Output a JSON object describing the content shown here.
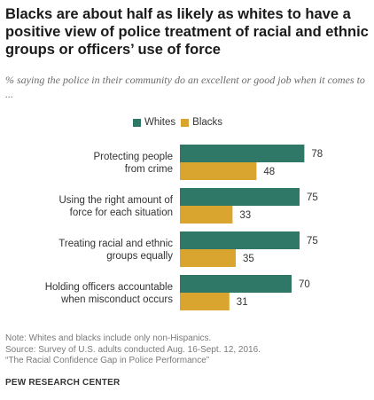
{
  "header": {
    "title": "Blacks are about half as likely as whites to have a positive view of police treatment of racial and ethnic groups or officers’ use of force",
    "subtitle": "% saying the police in their community do an excellent or good job when it comes to ..."
  },
  "legend": {
    "whites_label": "Whites",
    "blacks_label": "Blacks"
  },
  "colors": {
    "whites": "#2f7767",
    "blacks": "#d9a52e"
  },
  "chart_data": {
    "type": "bar",
    "orientation": "horizontal",
    "categories": [
      [
        "Protecting people",
        "from crime"
      ],
      [
        "Using the right amount of",
        "force for each situation"
      ],
      [
        "Treating racial and ethnic",
        "groups equally"
      ],
      [
        "Holding officers accountable",
        "when misconduct occurs"
      ]
    ],
    "series": [
      {
        "name": "Whites",
        "values": [
          78,
          75,
          75,
          70
        ]
      },
      {
        "name": "Blacks",
        "values": [
          48,
          33,
          35,
          31
        ]
      }
    ],
    "xlim": [
      0,
      100
    ],
    "legend_position": "top",
    "grid": false
  },
  "footer": {
    "notes": [
      "Note: Whites and blacks include only non-Hispanics.",
      "Source: Survey of U.S. adults conducted Aug. 16-Sept. 12, 2016.",
      "“The Racial Confidence Gap in Police Performance”"
    ],
    "org": "PEW RESEARCH CENTER"
  }
}
